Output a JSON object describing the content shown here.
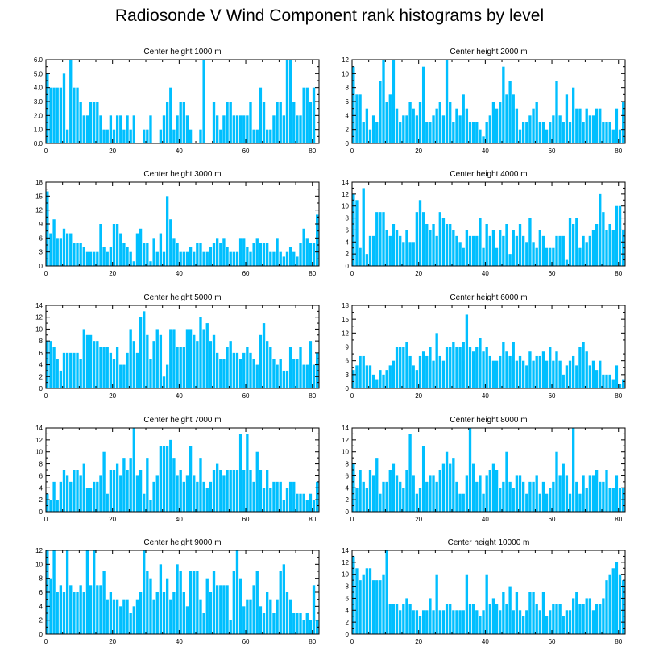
{
  "title": "Radiosonde V Wind Component rank histograms by level",
  "bar_color": "#00BFFF",
  "chart_data": [
    {
      "type": "bar",
      "title": "Center height 1000 m",
      "ylim": [
        0,
        6
      ],
      "yticks": [
        "0.0",
        "1.0",
        "2.0",
        "3.0",
        "4.0",
        "5.0",
        "6.0"
      ],
      "xlim": [
        0,
        82
      ],
      "xticks": [
        "0",
        "20",
        "40",
        "60",
        "80"
      ],
      "values": [
        5,
        4,
        4,
        4,
        4,
        5,
        1,
        6,
        4,
        4,
        3,
        2,
        2,
        3,
        3,
        3,
        2,
        1,
        1,
        2,
        1,
        2,
        2,
        1,
        2,
        1,
        2,
        0,
        0,
        1,
        1,
        2,
        0,
        0,
        1,
        2,
        3,
        4,
        1,
        2,
        3,
        3,
        2,
        1,
        0,
        0,
        1,
        6,
        0,
        0,
        3,
        2,
        1,
        2,
        3,
        3,
        2,
        2,
        2,
        2,
        2,
        3,
        1,
        1,
        4,
        3,
        1,
        1,
        2,
        3,
        3,
        2,
        6,
        6,
        3,
        2,
        2,
        4,
        4,
        3,
        4,
        0
      ]
    },
    {
      "type": "bar",
      "title": "Center height 2000 m",
      "ylim": [
        0,
        12
      ],
      "yticks": [
        "0",
        "2",
        "4",
        "6",
        "8",
        "10",
        "12"
      ],
      "xlim": [
        0,
        82
      ],
      "xticks": [
        "0",
        "20",
        "40",
        "60",
        "80"
      ],
      "values": [
        11,
        7,
        7,
        3,
        5,
        2,
        4,
        3,
        9,
        12,
        6,
        7,
        12,
        5,
        3,
        4,
        4,
        6,
        5,
        4,
        6,
        11,
        3,
        3,
        4,
        5,
        6,
        4,
        12,
        6,
        3,
        5,
        4,
        7,
        5,
        3,
        3,
        3,
        2,
        1,
        3,
        4,
        6,
        5,
        6,
        11,
        7,
        9,
        7,
        5,
        2,
        3,
        3,
        4,
        5,
        6,
        3,
        3,
        2,
        3,
        4,
        9,
        4,
        3,
        7,
        3,
        8,
        5,
        5,
        3,
        5,
        4,
        4,
        5,
        5,
        3,
        3,
        3,
        2,
        5,
        2,
        6
      ]
    },
    {
      "type": "bar",
      "title": "Center height 3000 m",
      "ylim": [
        0,
        18
      ],
      "yticks": [
        "0",
        "3",
        "6",
        "9",
        "12",
        "15",
        "18"
      ],
      "xlim": [
        0,
        82
      ],
      "xticks": [
        "0",
        "20",
        "40",
        "60",
        "80"
      ],
      "values": [
        16,
        7,
        10,
        6,
        6,
        8,
        7,
        7,
        5,
        5,
        5,
        4,
        3,
        3,
        3,
        3,
        9,
        4,
        3,
        4,
        9,
        9,
        7,
        5,
        4,
        3,
        1,
        7,
        8,
        5,
        5,
        1,
        6,
        3,
        7,
        3,
        15,
        10,
        6,
        5,
        3,
        3,
        3,
        4,
        3,
        5,
        5,
        3,
        3,
        4,
        5,
        6,
        5,
        6,
        4,
        3,
        3,
        3,
        6,
        6,
        4,
        3,
        5,
        6,
        5,
        5,
        5,
        3,
        3,
        6,
        3,
        2,
        3,
        4,
        3,
        2,
        5,
        8,
        6,
        5,
        5,
        11
      ]
    },
    {
      "type": "bar",
      "title": "Center height 4000 m",
      "ylim": [
        0,
        14
      ],
      "yticks": [
        "0",
        "2",
        "4",
        "6",
        "8",
        "10",
        "12",
        "14"
      ],
      "xlim": [
        0,
        82
      ],
      "xticks": [
        "0",
        "20",
        "40",
        "60",
        "80"
      ],
      "values": [
        12,
        11,
        3,
        13,
        2,
        5,
        5,
        9,
        9,
        9,
        6,
        5,
        7,
        6,
        5,
        4,
        6,
        4,
        4,
        9,
        11,
        9,
        7,
        6,
        7,
        5,
        9,
        8,
        7,
        7,
        6,
        5,
        4,
        3,
        6,
        5,
        5,
        5,
        8,
        3,
        7,
        5,
        6,
        3,
        6,
        5,
        7,
        2,
        6,
        5,
        7,
        5,
        4,
        8,
        4,
        3,
        6,
        5,
        3,
        3,
        3,
        5,
        5,
        5,
        1,
        8,
        7,
        8,
        3,
        5,
        4,
        5,
        6,
        7,
        12,
        9,
        6,
        7,
        6,
        10,
        10,
        6
      ]
    },
    {
      "type": "bar",
      "title": "Center height 5000 m",
      "ylim": [
        0,
        14
      ],
      "yticks": [
        "0",
        "2",
        "4",
        "6",
        "8",
        "10",
        "12",
        "14"
      ],
      "xlim": [
        0,
        82
      ],
      "xticks": [
        "0",
        "20",
        "40",
        "60",
        "80"
      ],
      "values": [
        8,
        8,
        7,
        5,
        3,
        6,
        6,
        6,
        6,
        6,
        5,
        10,
        9,
        9,
        8,
        8,
        7,
        7,
        7,
        6,
        5,
        7,
        4,
        4,
        6,
        10,
        8,
        6,
        12,
        13,
        9,
        5,
        8,
        10,
        9,
        2,
        4,
        10,
        10,
        7,
        7,
        7,
        10,
        10,
        9,
        8,
        12,
        10,
        11,
        8,
        9,
        6,
        5,
        5,
        7,
        8,
        6,
        6,
        5,
        6,
        7,
        6,
        5,
        4,
        9,
        11,
        8,
        7,
        5,
        4,
        5,
        3,
        3,
        7,
        5,
        5,
        7,
        4,
        4,
        8,
        4,
        6
      ]
    },
    {
      "type": "bar",
      "title": "Center height 6000 m",
      "ylim": [
        0,
        18
      ],
      "yticks": [
        "0",
        "3",
        "6",
        "9",
        "12",
        "15",
        "18"
      ],
      "xlim": [
        0,
        82
      ],
      "xticks": [
        "0",
        "20",
        "40",
        "60",
        "80"
      ],
      "values": [
        4,
        5,
        7,
        7,
        5,
        5,
        3,
        2,
        4,
        3,
        4,
        5,
        6,
        9,
        9,
        9,
        10,
        7,
        5,
        4,
        7,
        8,
        7,
        9,
        6,
        12,
        7,
        6,
        9,
        9,
        10,
        9,
        9,
        10,
        16,
        9,
        8,
        9,
        11,
        8,
        9,
        7,
        6,
        6,
        7,
        10,
        8,
        7,
        10,
        6,
        7,
        6,
        5,
        8,
        6,
        7,
        7,
        8,
        6,
        9,
        6,
        8,
        6,
        3,
        5,
        6,
        7,
        5,
        9,
        10,
        8,
        5,
        6,
        4,
        6,
        3,
        3,
        3,
        2,
        5,
        1,
        2
      ]
    },
    {
      "type": "bar",
      "title": "Center height 7000 m",
      "ylim": [
        0,
        14
      ],
      "yticks": [
        "0",
        "2",
        "4",
        "6",
        "8",
        "10",
        "12",
        "14"
      ],
      "xlim": [
        0,
        82
      ],
      "xticks": [
        "0",
        "20",
        "40",
        "60",
        "80"
      ],
      "values": [
        3,
        2,
        5,
        2,
        5,
        7,
        6,
        5,
        7,
        7,
        6,
        8,
        4,
        4,
        5,
        5,
        6,
        10,
        3,
        7,
        7,
        8,
        6,
        9,
        7,
        9,
        14,
        6,
        7,
        3,
        9,
        2,
        5,
        6,
        11,
        11,
        11,
        12,
        9,
        6,
        7,
        5,
        6,
        11,
        6,
        5,
        9,
        5,
        4,
        5,
        7,
        8,
        7,
        6,
        7,
        7,
        7,
        7,
        13,
        7,
        13,
        7,
        5,
        10,
        7,
        4,
        7,
        4,
        5,
        5,
        5,
        2,
        4,
        5,
        5,
        3,
        3,
        3,
        2,
        3,
        2,
        5
      ]
    },
    {
      "type": "bar",
      "title": "Center height 8000 m",
      "ylim": [
        0,
        14
      ],
      "yticks": [
        "0",
        "2",
        "4",
        "6",
        "8",
        "10",
        "12",
        "14"
      ],
      "xlim": [
        0,
        82
      ],
      "xticks": [
        "0",
        "20",
        "40",
        "60",
        "80"
      ],
      "values": [
        8,
        4,
        7,
        5,
        4,
        7,
        6,
        9,
        3,
        5,
        5,
        7,
        8,
        6,
        5,
        4,
        7,
        13,
        6,
        3,
        4,
        11,
        5,
        6,
        6,
        5,
        7,
        8,
        10,
        8,
        9,
        5,
        3,
        3,
        6,
        14,
        8,
        5,
        6,
        3,
        6,
        7,
        8,
        7,
        4,
        5,
        10,
        5,
        4,
        6,
        6,
        5,
        3,
        5,
        5,
        6,
        3,
        5,
        3,
        4,
        5,
        10,
        6,
        8,
        6,
        3,
        14,
        5,
        3,
        6,
        4,
        6,
        6,
        7,
        5,
        5,
        7,
        4,
        4,
        6,
        4,
        4
      ]
    },
    {
      "type": "bar",
      "title": "Center height 9000 m",
      "ylim": [
        0,
        12
      ],
      "yticks": [
        "0",
        "2",
        "4",
        "6",
        "8",
        "10",
        "12"
      ],
      "xlim": [
        0,
        82
      ],
      "xticks": [
        "0",
        "20",
        "40",
        "60",
        "80"
      ],
      "values": [
        12,
        8,
        12,
        6,
        7,
        6,
        12,
        7,
        6,
        6,
        7,
        6,
        12,
        7,
        12,
        7,
        7,
        9,
        5,
        6,
        5,
        5,
        4,
        5,
        5,
        3,
        4,
        5,
        6,
        12,
        9,
        8,
        5,
        6,
        10,
        6,
        8,
        5,
        6,
        10,
        9,
        6,
        4,
        9,
        9,
        9,
        5,
        3,
        8,
        6,
        9,
        7,
        7,
        7,
        7,
        2,
        9,
        12,
        8,
        4,
        5,
        5,
        7,
        9,
        4,
        3,
        6,
        5,
        3,
        5,
        9,
        10,
        6,
        5,
        3,
        3,
        3,
        2,
        3,
        2,
        7,
        2
      ]
    },
    {
      "type": "bar",
      "title": "Center height 10000 m",
      "ylim": [
        0,
        14
      ],
      "yticks": [
        "0",
        "2",
        "4",
        "6",
        "8",
        "10",
        "12",
        "14"
      ],
      "xlim": [
        0,
        82
      ],
      "xticks": [
        "0",
        "20",
        "40",
        "60",
        "80"
      ],
      "values": [
        13,
        11,
        9,
        10,
        11,
        11,
        9,
        9,
        9,
        10,
        14,
        5,
        5,
        5,
        4,
        5,
        6,
        5,
        4,
        4,
        3,
        4,
        4,
        6,
        4,
        10,
        4,
        4,
        5,
        5,
        4,
        4,
        4,
        4,
        10,
        5,
        5,
        4,
        3,
        4,
        10,
        5,
        6,
        5,
        4,
        7,
        5,
        8,
        4,
        7,
        4,
        3,
        4,
        7,
        7,
        5,
        4,
        7,
        3,
        4,
        5,
        5,
        5,
        3,
        4,
        4,
        6,
        7,
        5,
        5,
        6,
        6,
        4,
        5,
        5,
        6,
        9,
        10,
        11,
        12,
        10,
        9
      ]
    }
  ]
}
